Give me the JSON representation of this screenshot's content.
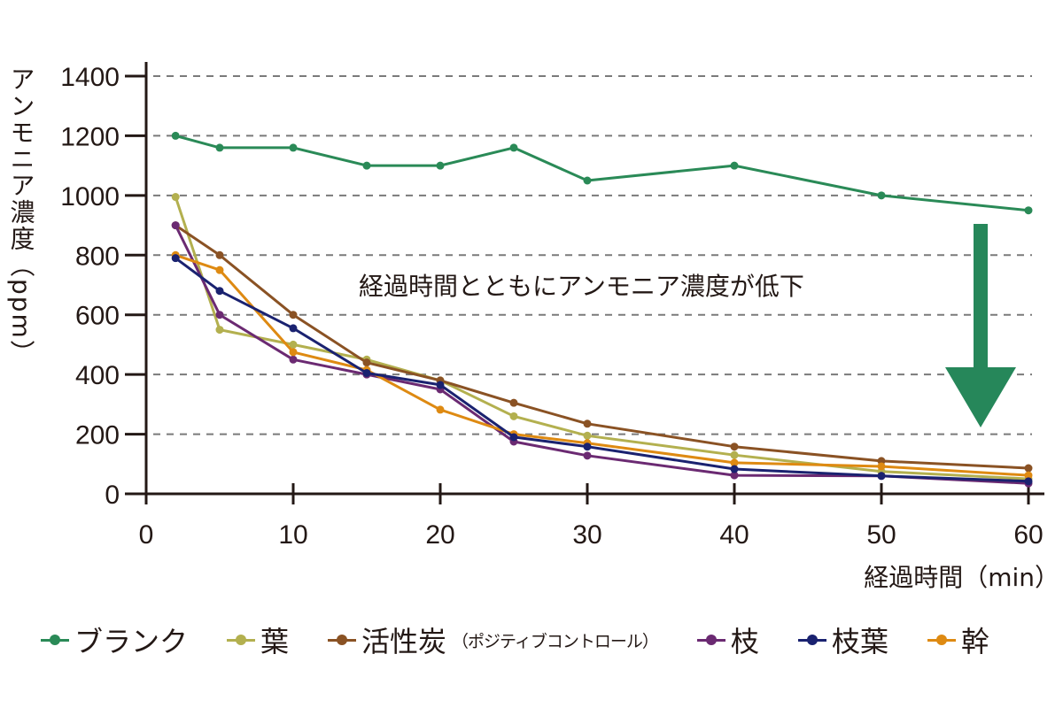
{
  "chart_data": {
    "type": "line",
    "title": "",
    "xlabel": "経過時間（min）",
    "ylabel": "アンモニア濃度（ppm）",
    "xlim": [
      0,
      60
    ],
    "ylim": [
      0,
      1400
    ],
    "xticks": [
      "0",
      "10",
      "20",
      "30",
      "40",
      "50",
      "60"
    ],
    "xtick_values": [
      0,
      10,
      20,
      30,
      40,
      50,
      60
    ],
    "yticks": [
      "0",
      "200",
      "400",
      "600",
      "800",
      "1000",
      "1200",
      "1400"
    ],
    "ytick_values": [
      0,
      200,
      400,
      600,
      800,
      1000,
      1200,
      1400
    ],
    "grid": "horizontal-dashed",
    "legend_position": "bottom",
    "x": [
      2,
      5,
      10,
      15,
      20,
      25,
      30,
      40,
      50,
      60
    ],
    "series": [
      {
        "name": "ブランク",
        "color": "#2a8a57",
        "values": [
          1200,
          1160,
          1160,
          1100,
          1100,
          1160,
          1050,
          1100,
          1000,
          950
        ]
      },
      {
        "name": "葉",
        "color": "#b3b04f",
        "values": [
          995,
          550,
          500,
          450,
          380,
          260,
          195,
          130,
          75,
          50
        ]
      },
      {
        "name": "活性炭",
        "sub": "（ポジティブコントロール）",
        "color": "#8a5224",
        "values": [
          900,
          800,
          600,
          440,
          380,
          305,
          235,
          158,
          110,
          86
        ]
      },
      {
        "name": "枝",
        "color": "#6b2a72",
        "values": [
          900,
          600,
          450,
          400,
          350,
          175,
          128,
          62,
          60,
          35
        ]
      },
      {
        "name": "枝葉",
        "color": "#1a2270",
        "values": [
          790,
          680,
          555,
          405,
          365,
          190,
          158,
          83,
          60,
          42
        ]
      },
      {
        "name": "幹",
        "color": "#de8a12",
        "values": [
          800,
          750,
          475,
          415,
          282,
          200,
          170,
          104,
          92,
          62
        ]
      }
    ],
    "annotations": [
      {
        "text": "経過時間とともにアンモニア濃度が低下",
        "arrow": "down",
        "arrow_color": "#26875a"
      }
    ]
  },
  "legend": {
    "items": [
      {
        "label": "ブランク",
        "sub": ""
      },
      {
        "label": "葉",
        "sub": ""
      },
      {
        "label": "活性炭",
        "sub": "（ポジティブコントロール）"
      },
      {
        "label": "枝",
        "sub": ""
      },
      {
        "label": "枝葉",
        "sub": ""
      },
      {
        "label": "幹",
        "sub": ""
      }
    ]
  }
}
